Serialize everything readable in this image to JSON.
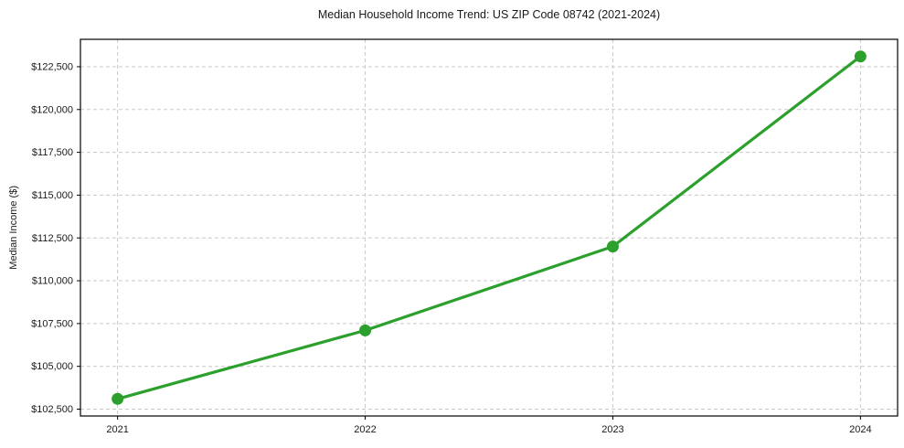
{
  "chart_data": {
    "type": "line",
    "title": "Median Household Income Trend: US ZIP Code 08742 (2021-2024)",
    "xlabel": "",
    "ylabel": "Median Income ($)",
    "categories": [
      "2021",
      "2022",
      "2023",
      "2024"
    ],
    "series": [
      {
        "name": "Median Household Income",
        "values": [
          103100,
          107100,
          112000,
          123100
        ]
      }
    ],
    "ylim": [
      102100,
      124100
    ],
    "yticks": [
      102500,
      105000,
      107500,
      110000,
      112500,
      115000,
      117500,
      120000,
      122500
    ],
    "ytick_labels": [
      "$102,500",
      "$105,000",
      "$107,500",
      "$110,000",
      "$112,500",
      "$115,000",
      "$117,500",
      "$120,000",
      "$122,500"
    ],
    "xtick_labels": [
      "2021",
      "2022",
      "2023",
      "2024"
    ],
    "grid": true,
    "grid_line_style": "dashed",
    "legend_position": "none",
    "marker": "circle",
    "colors": {
      "line": "#2ca02c",
      "marker": "#2ca02c",
      "grid": "#c9c9c9",
      "spine": "#000000",
      "text": "#1a1a1a",
      "background": "#ffffff"
    }
  }
}
